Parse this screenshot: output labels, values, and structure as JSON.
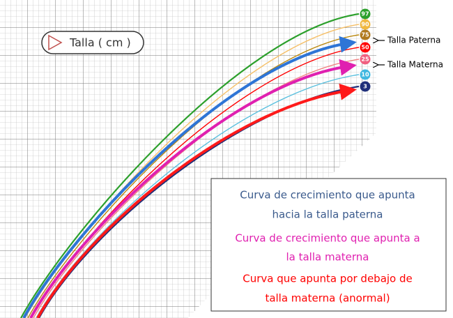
{
  "label": "Talla ( cm )",
  "percentiles": [
    "97",
    "90",
    "75",
    "50",
    "25",
    "10",
    "3"
  ],
  "annotations": {
    "paternal": "Talla Paterna",
    "maternal": "Talla Materna"
  },
  "legend": [
    {
      "lines": [
        "Curva de crecimiento que apunta",
        "hacia la talla paterna"
      ]
    },
    {
      "lines": [
        "Curva de crecimiento que apunta a",
        "la talla materna"
      ]
    },
    {
      "lines": [
        "Curva que apunta por debajo de",
        "talla materna (anormal)"
      ]
    }
  ]
}
